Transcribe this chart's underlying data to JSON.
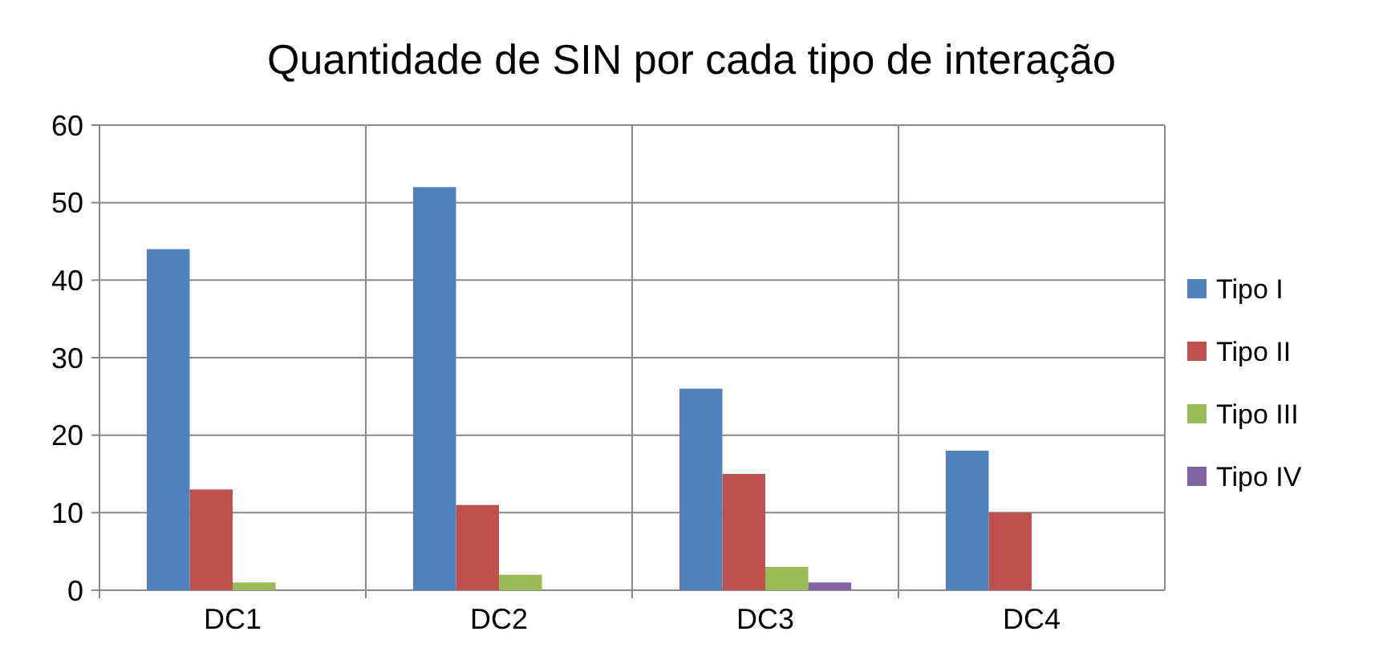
{
  "chart_data": {
    "type": "bar",
    "title": "Quantidade de SIN por cada tipo de interação",
    "categories": [
      "DC1",
      "DC2",
      "DC3",
      "DC4"
    ],
    "series": [
      {
        "name": "Tipo I",
        "color": "#4f81bd",
        "values": [
          44,
          52,
          26,
          18
        ]
      },
      {
        "name": "Tipo II",
        "color": "#c0504d",
        "values": [
          13,
          11,
          15,
          10
        ]
      },
      {
        "name": "Tipo III",
        "color": "#9bbb59",
        "values": [
          1,
          2,
          3,
          null
        ]
      },
      {
        "name": "Tipo IV",
        "color": "#8064a2",
        "values": [
          null,
          null,
          1,
          null
        ]
      }
    ],
    "ylim": [
      0,
      60
    ],
    "yticks": [
      0,
      10,
      20,
      30,
      40,
      50,
      60
    ],
    "grid": true,
    "legend": "right"
  }
}
